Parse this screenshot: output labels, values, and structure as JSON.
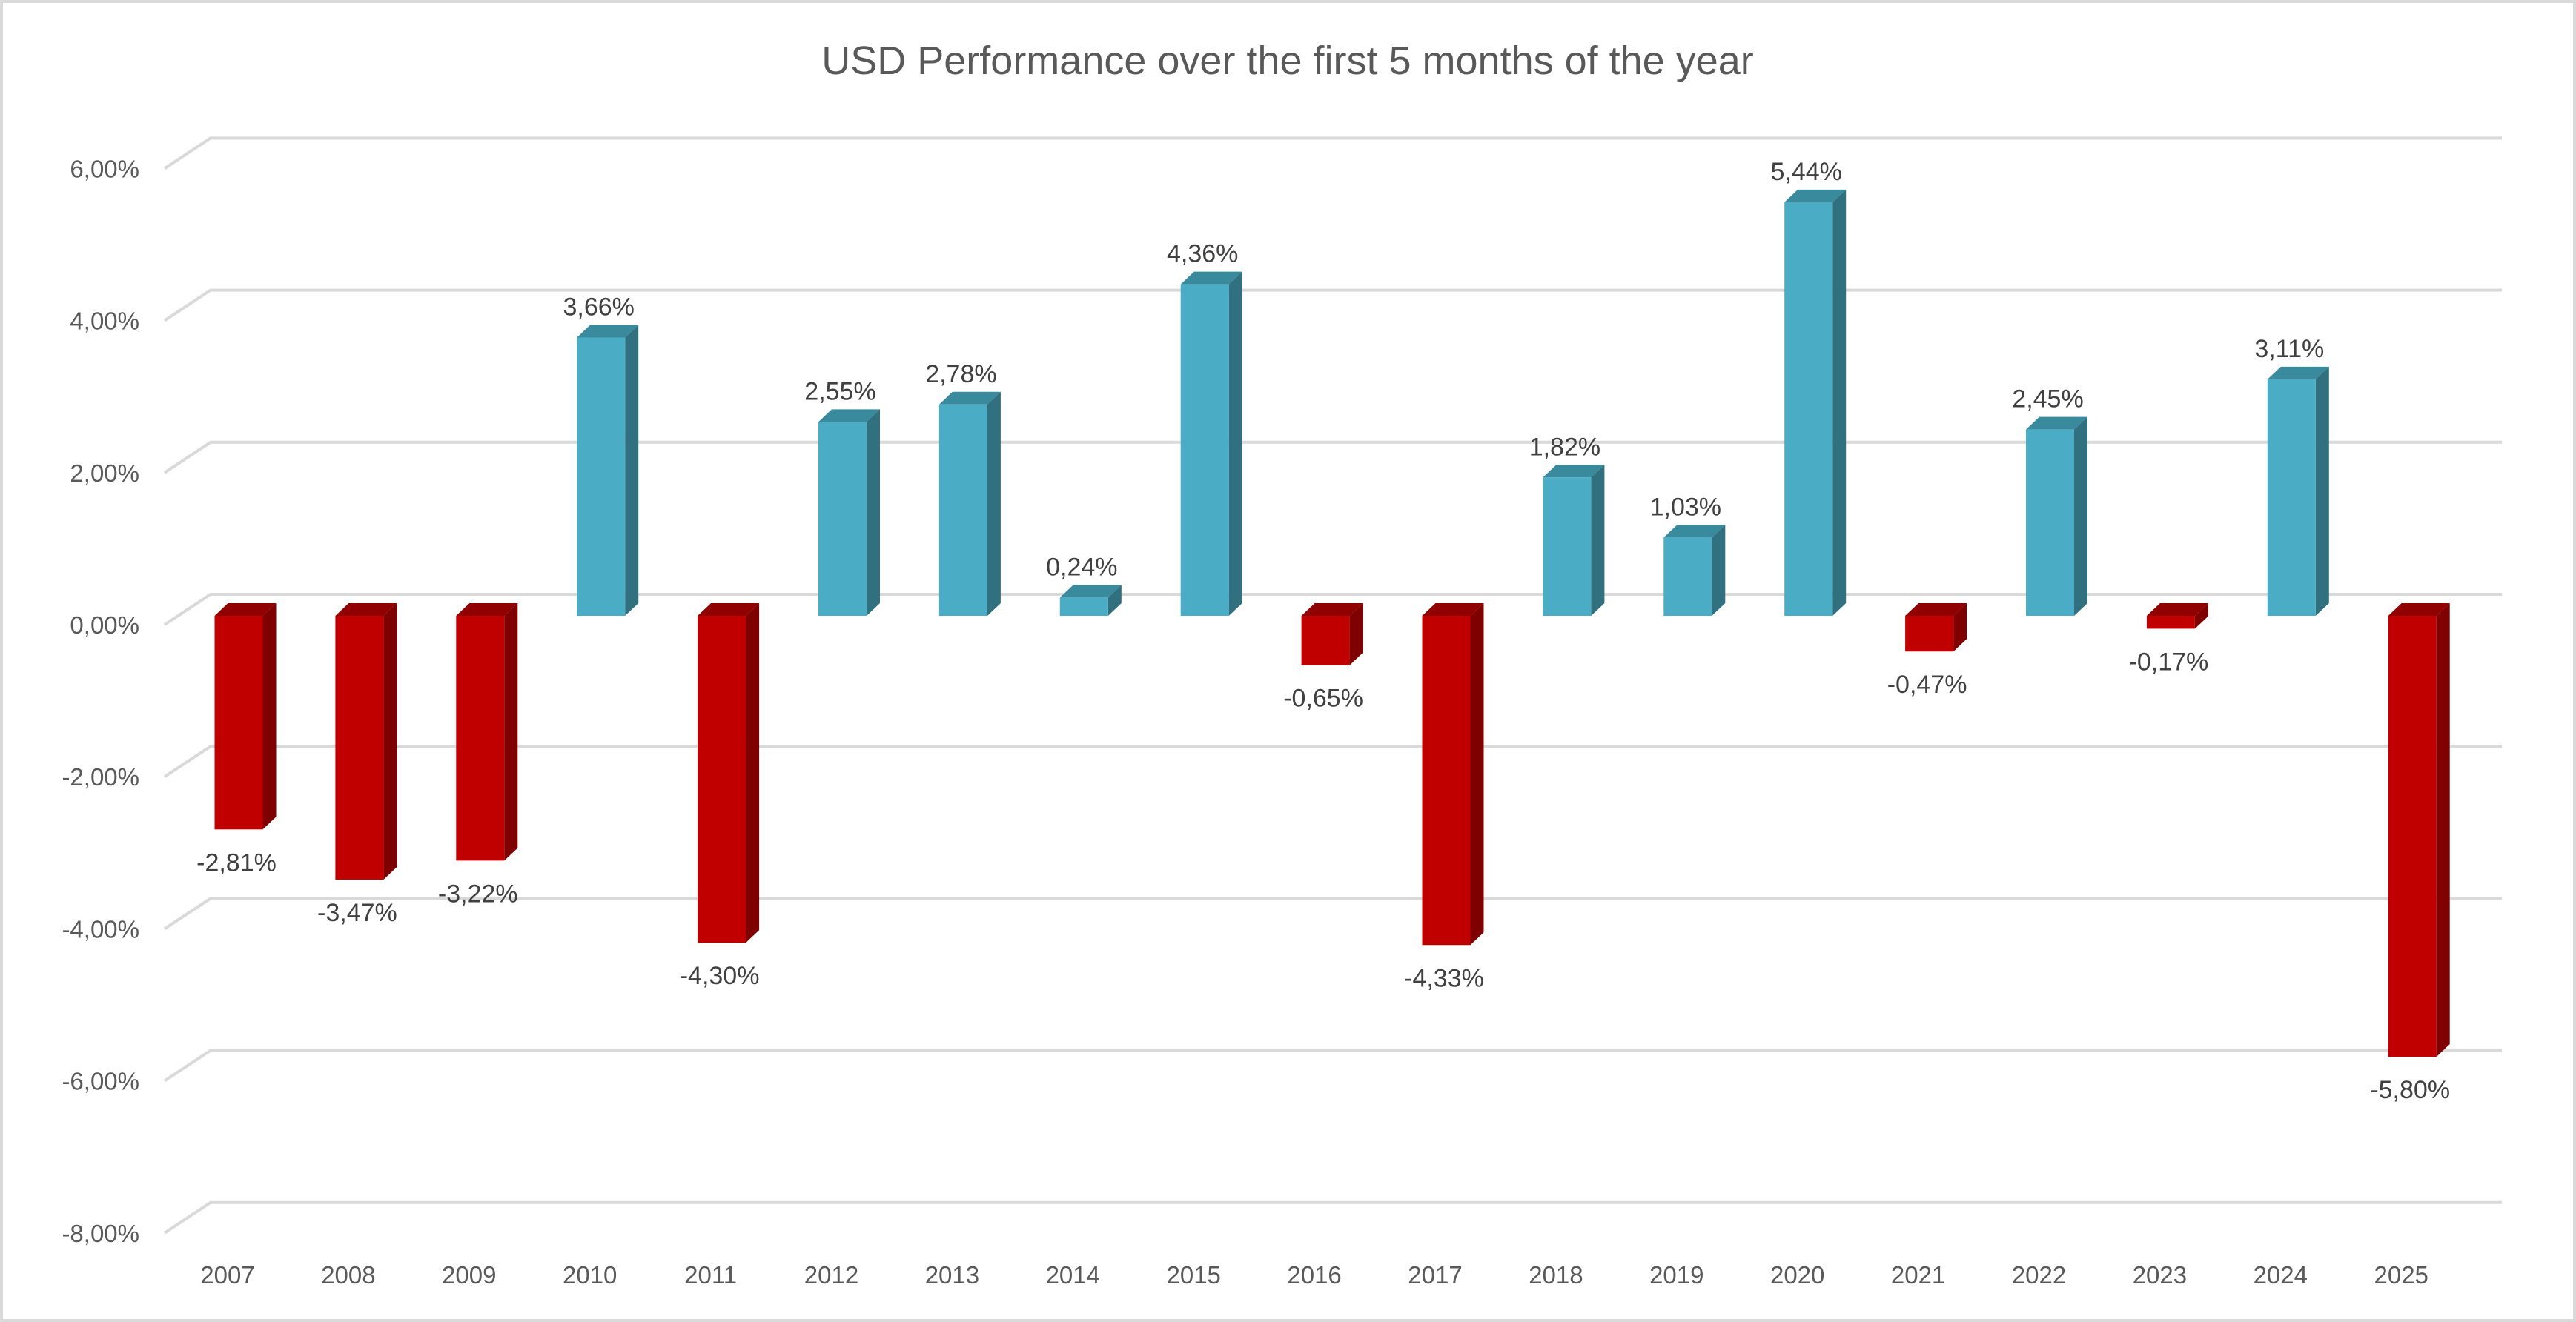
{
  "chart_data": {
    "type": "bar",
    "style": "3d-column",
    "title": "USD Performance over the first 5 months of the year",
    "xlabel": "",
    "ylabel": "",
    "categories": [
      "2007",
      "2008",
      "2009",
      "2010",
      "2011",
      "2012",
      "2013",
      "2014",
      "2015",
      "2016",
      "2017",
      "2018",
      "2019",
      "2020",
      "2021",
      "2022",
      "2023",
      "2024",
      "2025"
    ],
    "values": [
      -2.81,
      -3.47,
      -3.22,
      3.66,
      -4.3,
      2.55,
      2.78,
      0.24,
      4.36,
      -0.65,
      -4.33,
      1.82,
      1.03,
      5.44,
      -0.47,
      2.45,
      -0.17,
      3.11,
      -5.8
    ],
    "data_labels": [
      "-2,81%",
      "-3,47%",
      "-3,22%",
      "3,66%",
      "-4,30%",
      "2,55%",
      "2,78%",
      "0,24%",
      "4,36%",
      "-0,65%",
      "-4,33%",
      "1,82%",
      "1,03%",
      "5,44%",
      "-0,47%",
      "2,45%",
      "-0,17%",
      "3,11%",
      "-5,80%"
    ],
    "ylim": [
      -8,
      6
    ],
    "y_ticks": [
      6,
      4,
      2,
      0,
      -2,
      -4,
      -6,
      -8
    ],
    "y_tick_labels": [
      "6,00%",
      "4,00%",
      "2,00%",
      "0,00%",
      "-2,00%",
      "-4,00%",
      "-6,00%",
      "-8,00%"
    ],
    "unit": "%",
    "grid": true,
    "legend": "none",
    "colors": {
      "positive": "#4BACC6",
      "positive_side": "#31707F",
      "positive_top": "#3A8A9E",
      "negative": "#C00000",
      "negative_side": "#7F0000",
      "negative_top": "#900000",
      "grid": "#D9D9D9"
    }
  }
}
